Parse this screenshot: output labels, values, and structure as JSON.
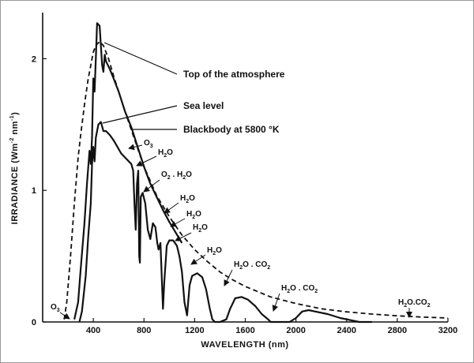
{
  "chart_data": {
    "type": "line",
    "xlabel": "WAVELENGTH (nm)",
    "ylabel": {
      "prefix": "IRRADIANCE  (Wm",
      "exp1": "-2",
      "mid": " nm",
      "exp2": "-1",
      "suffix": ")"
    },
    "xlim": [
      0,
      3200
    ],
    "ylim": [
      0,
      2.35
    ],
    "x_ticks": [
      {
        "value": 400,
        "label": "400"
      },
      {
        "value": 800,
        "label": "800"
      },
      {
        "value": 1200,
        "label": "1200"
      },
      {
        "value": 1600,
        "label": "1600"
      },
      {
        "value": 2000,
        "label": "2000"
      },
      {
        "value": 2400,
        "label": "2400"
      },
      {
        "value": 2800,
        "label": "2800"
      },
      {
        "value": 3200,
        "label": "3200"
      }
    ],
    "y_ticks": [
      {
        "value": 0,
        "label": "0"
      },
      {
        "value": 1,
        "label": "1"
      },
      {
        "value": 2,
        "label": "2"
      }
    ],
    "grid": false,
    "series": [
      {
        "name": "Top of the atmosphere",
        "style": "solid",
        "points": [
          [
            250,
            0.02
          ],
          [
            280,
            0.15
          ],
          [
            300,
            0.4
          ],
          [
            330,
            0.75
          ],
          [
            350,
            1.05
          ],
          [
            370,
            1.3
          ],
          [
            380,
            1.2
          ],
          [
            390,
            1.4
          ],
          [
            400,
            1.85
          ],
          [
            410,
            1.75
          ],
          [
            420,
            2.0
          ],
          [
            430,
            2.27
          ],
          [
            450,
            2.25
          ],
          [
            470,
            1.95
          ],
          [
            480,
            1.9
          ],
          [
            490,
            2.03
          ],
          [
            500,
            1.98
          ],
          [
            530,
            1.92
          ],
          [
            560,
            1.85
          ],
          [
            600,
            1.75
          ],
          [
            650,
            1.6
          ],
          [
            700,
            1.48
          ],
          [
            750,
            1.33
          ],
          [
            800,
            1.18
          ],
          [
            850,
            1.05
          ],
          [
            900,
            0.95
          ],
          [
            950,
            0.85
          ],
          [
            1000,
            0.76
          ],
          [
            1050,
            0.68
          ],
          [
            1100,
            0.6
          ]
        ]
      },
      {
        "name": "Sea level",
        "style": "solid",
        "points": [
          [
            290,
            0.0
          ],
          [
            310,
            0.08
          ],
          [
            340,
            0.35
          ],
          [
            360,
            0.65
          ],
          [
            380,
            0.9
          ],
          [
            390,
            1.2
          ],
          [
            400,
            1.33
          ],
          [
            410,
            1.22
          ],
          [
            420,
            1.4
          ],
          [
            440,
            1.5
          ],
          [
            460,
            1.52
          ],
          [
            480,
            1.45
          ],
          [
            500,
            1.45
          ],
          [
            530,
            1.42
          ],
          [
            560,
            1.38
          ],
          [
            590,
            1.33
          ],
          [
            620,
            1.28
          ],
          [
            650,
            1.25
          ],
          [
            680,
            1.22
          ],
          [
            700,
            1.2
          ],
          [
            715,
            1.15
          ],
          [
            725,
            0.9
          ],
          [
            735,
            0.7
          ],
          [
            745,
            1.05
          ],
          [
            755,
            1.15
          ],
          [
            762,
            0.5
          ],
          [
            768,
            0.45
          ],
          [
            775,
            0.95
          ],
          [
            790,
            0.98
          ],
          [
            810,
            0.9
          ],
          [
            830,
            0.7
          ],
          [
            850,
            0.63
          ],
          [
            870,
            0.75
          ],
          [
            890,
            0.72
          ],
          [
            905,
            0.6
          ],
          [
            915,
            0.55
          ],
          [
            930,
            0.6
          ],
          [
            940,
            0.35
          ],
          [
            950,
            0.1
          ],
          [
            960,
            0.3
          ],
          [
            980,
            0.58
          ],
          [
            1000,
            0.62
          ],
          [
            1030,
            0.62
          ],
          [
            1060,
            0.58
          ],
          [
            1080,
            0.5
          ],
          [
            1100,
            0.38
          ],
          [
            1120,
            0.15
          ],
          [
            1140,
            0.05
          ],
          [
            1160,
            0.28
          ],
          [
            1180,
            0.35
          ],
          [
            1220,
            0.37
          ],
          [
            1260,
            0.34
          ],
          [
            1290,
            0.25
          ],
          [
            1320,
            0.1
          ],
          [
            1340,
            0.02
          ],
          [
            1360,
            0.0
          ],
          [
            1400,
            0.0
          ],
          [
            1450,
            0.02
          ],
          [
            1480,
            0.1
          ],
          [
            1520,
            0.18
          ],
          [
            1570,
            0.19
          ],
          [
            1620,
            0.17
          ],
          [
            1680,
            0.12
          ],
          [
            1730,
            0.06
          ],
          [
            1780,
            0.02
          ],
          [
            1800,
            0.0
          ],
          [
            1950,
            0.0
          ],
          [
            2000,
            0.03
          ],
          [
            2050,
            0.08
          ],
          [
            2100,
            0.09
          ],
          [
            2150,
            0.08
          ],
          [
            2250,
            0.06
          ],
          [
            2350,
            0.03
          ],
          [
            2450,
            0.01
          ],
          [
            2500,
            0.0
          ],
          [
            2600,
            0.0
          ]
        ]
      },
      {
        "name": "Blackbody at 5800 °K",
        "style": "dashed",
        "points": [
          [
            170,
            0.02
          ],
          [
            190,
            0.15
          ],
          [
            220,
            0.5
          ],
          [
            250,
            0.9
          ],
          [
            280,
            1.25
          ],
          [
            300,
            1.42
          ],
          [
            330,
            1.65
          ],
          [
            360,
            1.85
          ],
          [
            400,
            2.05
          ],
          [
            420,
            2.1
          ],
          [
            450,
            2.13
          ],
          [
            480,
            2.1
          ],
          [
            520,
            2.0
          ],
          [
            560,
            1.87
          ],
          [
            600,
            1.75
          ],
          [
            650,
            1.6
          ],
          [
            700,
            1.46
          ],
          [
            750,
            1.32
          ],
          [
            800,
            1.18
          ],
          [
            900,
            0.96
          ],
          [
            1000,
            0.8
          ],
          [
            1100,
            0.66
          ],
          [
            1200,
            0.55
          ],
          [
            1300,
            0.46
          ],
          [
            1400,
            0.38
          ],
          [
            1500,
            0.32
          ],
          [
            1600,
            0.27
          ],
          [
            1800,
            0.19
          ],
          [
            2000,
            0.14
          ],
          [
            2200,
            0.1
          ],
          [
            2400,
            0.077
          ],
          [
            2600,
            0.06
          ],
          [
            2800,
            0.047
          ],
          [
            3000,
            0.037
          ],
          [
            3200,
            0.03
          ]
        ]
      }
    ],
    "annotations": {
      "top": "Top of the atmosphere",
      "sea": "Sea level",
      "blackbody": "Blackbody at 5800 °K",
      "o3_a": {
        "base": "O",
        "sub": "3"
      },
      "h2o_1": {
        "base": "H",
        "sub": "2",
        "rest": "O"
      },
      "o2h2o": {
        "p1": "O",
        "s1": "2",
        "p2": " . H",
        "s2": "2",
        "p3": "O"
      },
      "h2o_2": {
        "base": "H",
        "sub": "2",
        "rest": "O"
      },
      "h2o_3": {
        "base": "H",
        "sub": "2",
        "rest": "O"
      },
      "h2o_4": {
        "base": "H",
        "sub": "2",
        "rest": "O"
      },
      "h2o_5": {
        "base": "H",
        "sub": "2",
        "rest": "O"
      },
      "h2oco2_1": {
        "p1": "H",
        "s1": "2",
        "p2": "O . CO",
        "s2": "2"
      },
      "h2oco2_2": {
        "p1": "H",
        "s1": "2",
        "p2": "O . CO",
        "s2": "2"
      },
      "h2oco2_3": {
        "p1": "H",
        "s1": "2",
        "p2": "O.CO",
        "s2": "2"
      },
      "o3_b": {
        "base": "O",
        "sub": "3"
      }
    }
  }
}
